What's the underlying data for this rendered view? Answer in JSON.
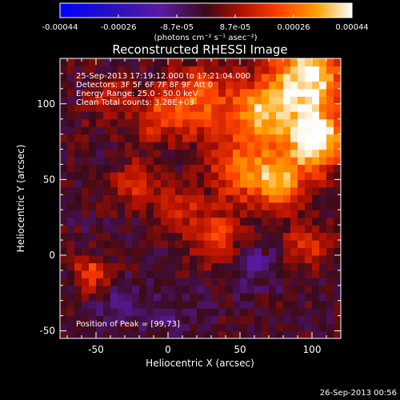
{
  "colorbar": {
    "ticks": [
      "-0.00044",
      "-0.00026",
      "-8.7e-05",
      "8.7e-05",
      "0.00026",
      "0.00044"
    ],
    "units": "(photons cm⁻² s⁻¹ asec⁻²)"
  },
  "chart_data": {
    "type": "heatmap",
    "title": "Reconstructed RHESSI Image",
    "xlabel": "Heliocentric X (arcsec)",
    "ylabel": "Heliocentric Y (arcsec)",
    "xlim": [
      -75,
      120
    ],
    "ylim": [
      -55,
      130
    ],
    "xticks": [
      "-50",
      "0",
      "50",
      "100"
    ],
    "yticks": [
      "-50",
      "0",
      "50",
      "100"
    ],
    "zlim": [
      -0.00044,
      0.00044
    ],
    "annotations": [
      "25-Sep-2013 17:19:12.000 to 17:21:04.000",
      "Detectors: 3F 5F 6F 7F 8F 9F  Att 0",
      "Energy Range: 25.0 - 50.0 keV",
      "Clean      Total counts: 3.28E+03"
    ],
    "peak_label": "Position of Peak = [99,73]",
    "peak": {
      "x": 99,
      "y": 73
    },
    "sources": [
      {
        "x": 95,
        "y": 115,
        "amp": 0.00045,
        "sigma": 18
      },
      {
        "x": 99,
        "y": 73,
        "amp": 0.00048,
        "sigma": 14
      },
      {
        "x": 62,
        "y": 92,
        "amp": 0.00034,
        "sigma": 14
      },
      {
        "x": 50,
        "y": 55,
        "amp": 0.00026,
        "sigma": 16
      },
      {
        "x": 75,
        "y": 45,
        "amp": 0.00028,
        "sigma": 12
      },
      {
        "x": 20,
        "y": 100,
        "amp": 0.00024,
        "sigma": 16
      },
      {
        "x": -10,
        "y": 90,
        "amp": 0.00018,
        "sigma": 12
      },
      {
        "x": -25,
        "y": 45,
        "amp": 0.0002,
        "sigma": 10
      },
      {
        "x": 5,
        "y": 30,
        "amp": 0.00016,
        "sigma": 10
      },
      {
        "x": 30,
        "y": 10,
        "amp": 0.0002,
        "sigma": 12
      },
      {
        "x": -55,
        "y": -15,
        "amp": 0.00024,
        "sigma": 8
      },
      {
        "x": 95,
        "y": 5,
        "amp": 0.00018,
        "sigma": 10
      },
      {
        "x": -45,
        "y": 100,
        "amp": 0.00014,
        "sigma": 10
      },
      {
        "x": 55,
        "y": -10,
        "amp": -0.00012,
        "sigma": 10
      },
      {
        "x": -40,
        "y": -35,
        "amp": -8e-05,
        "sigma": 12
      },
      {
        "x": 0,
        "y": -40,
        "amp": -6e-05,
        "sigma": 14
      }
    ]
  },
  "footer": {
    "date": "26-Sep-2013 00:56"
  }
}
